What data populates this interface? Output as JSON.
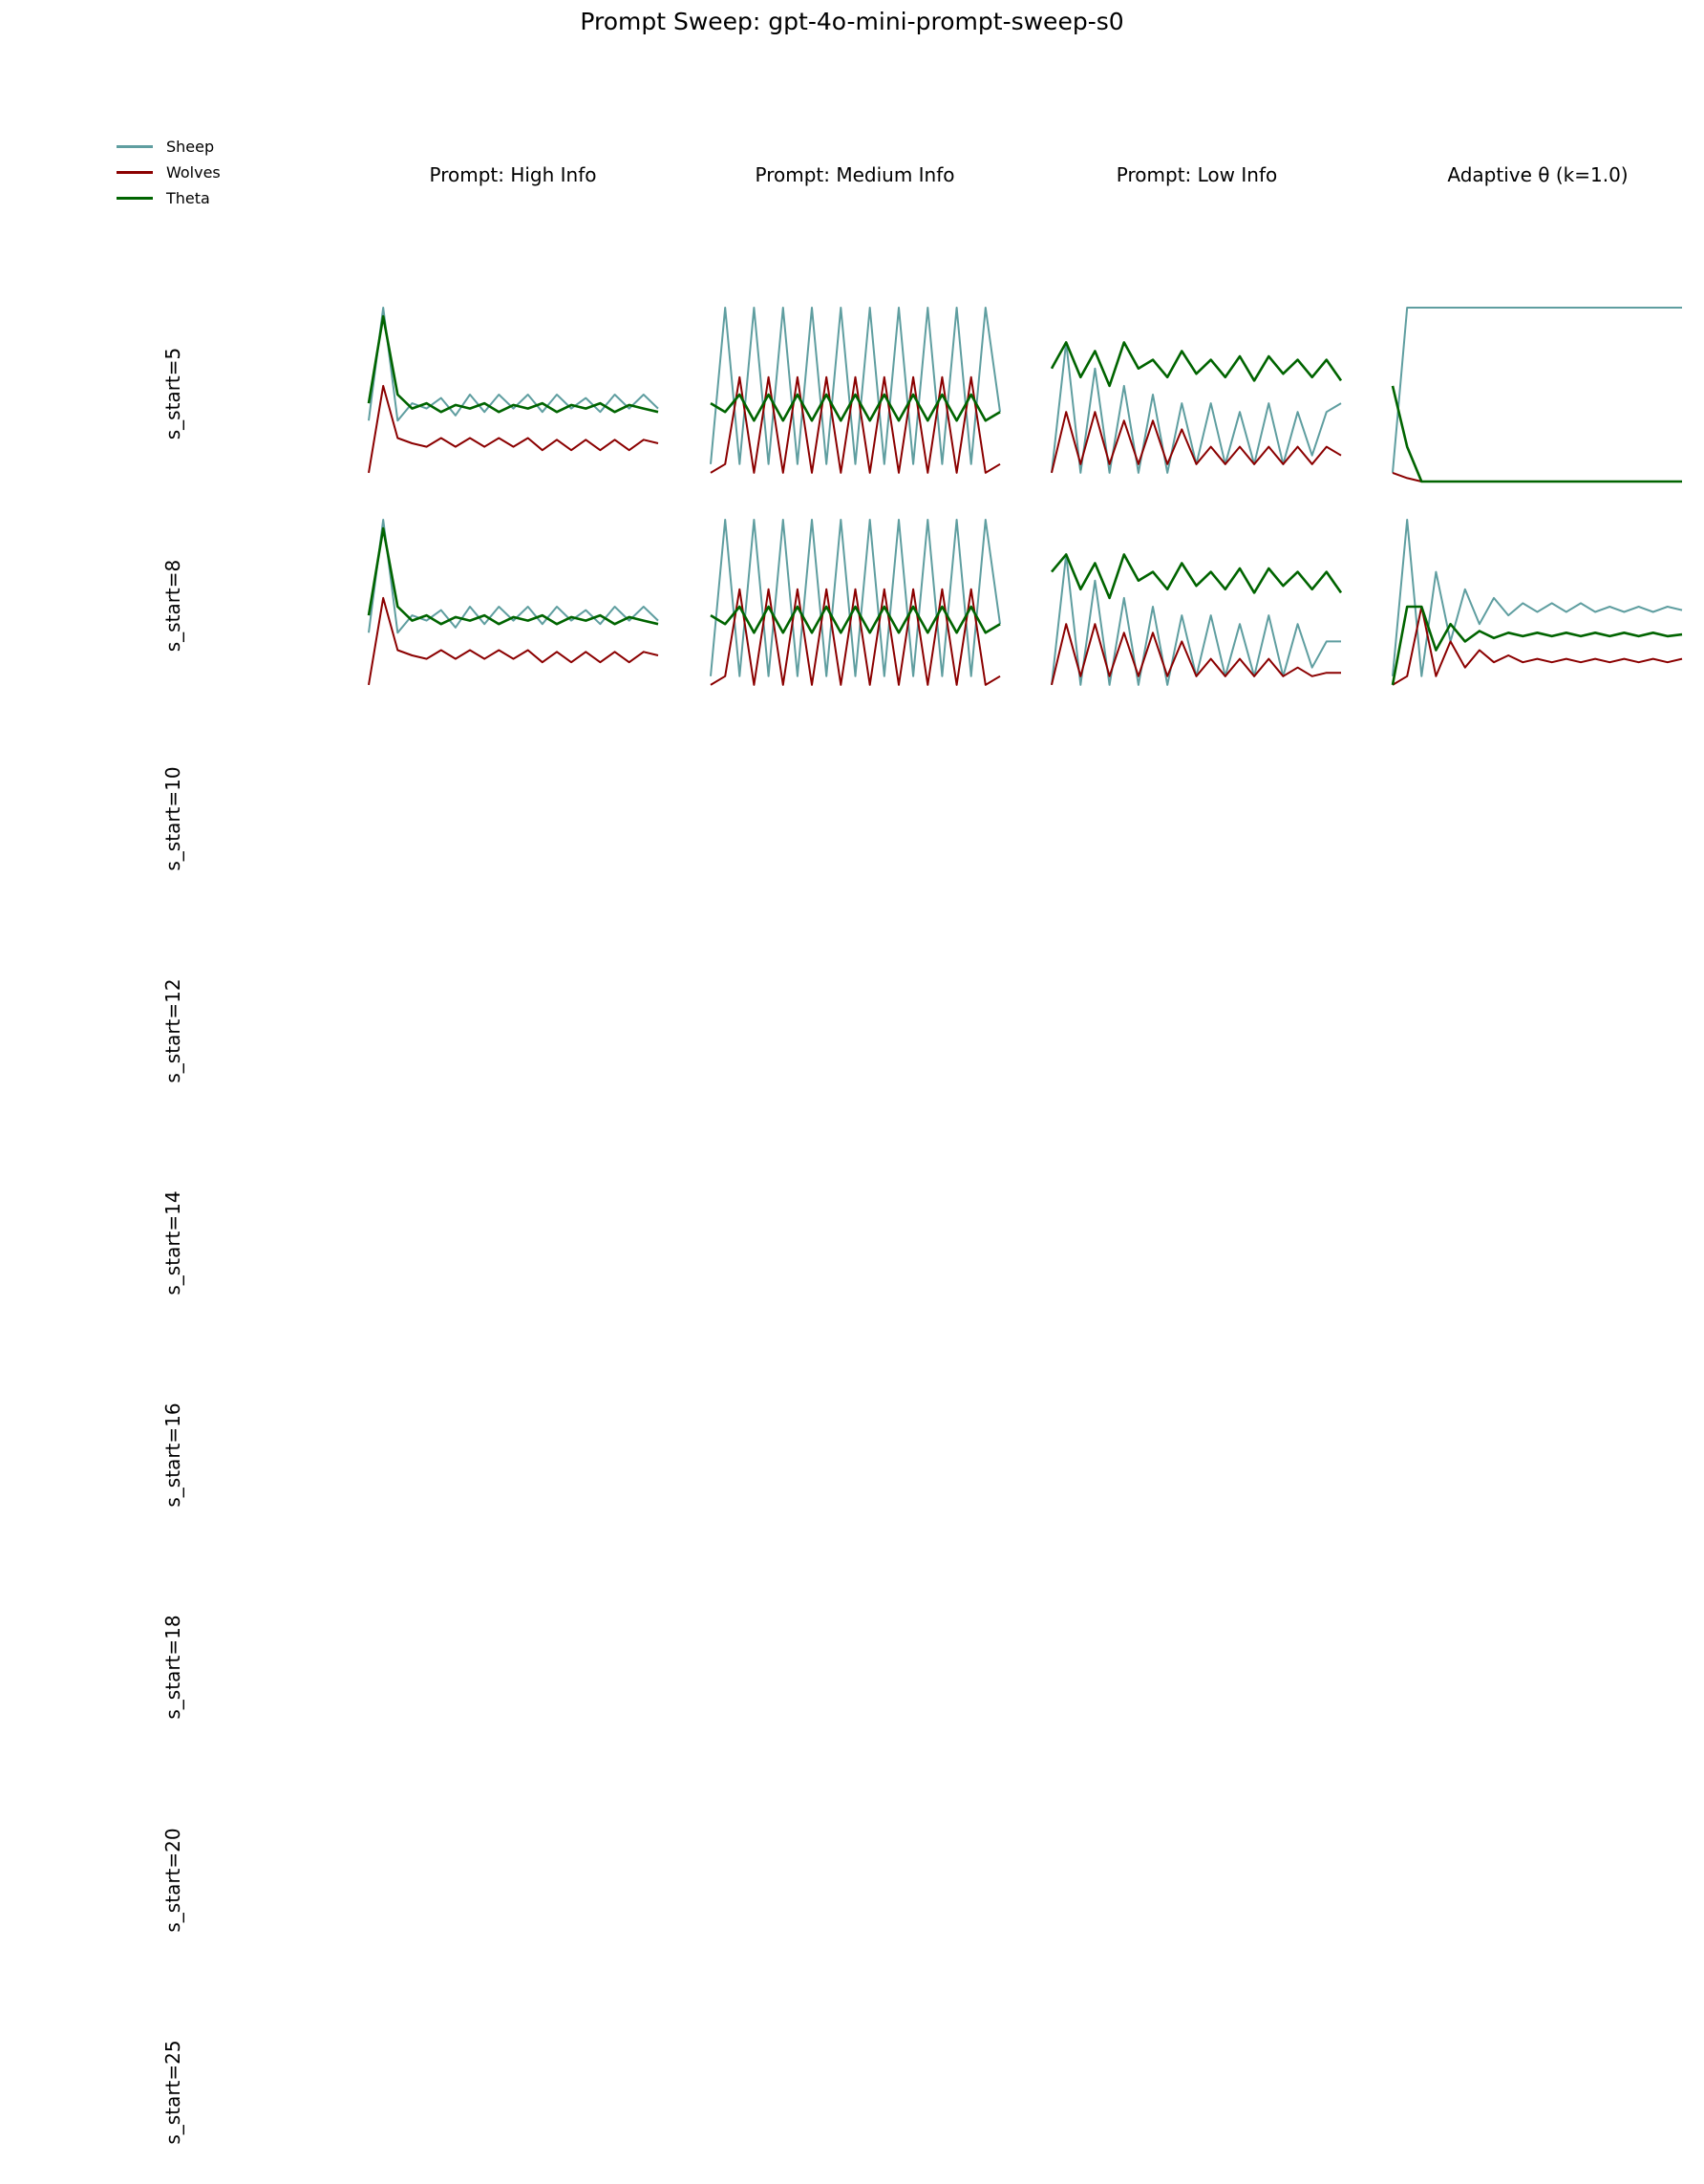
{
  "title": "Prompt Sweep: gpt-4o-mini-prompt-sweep-s0",
  "legend": [
    {
      "name": "Sheep",
      "color": "#5f9ea0"
    },
    {
      "name": "Wolves",
      "color": "#8b0000"
    },
    {
      "name": "Theta",
      "color": "#006400"
    }
  ],
  "columns": [
    "Prompt: High Info",
    "Prompt: Medium Info",
    "Prompt: Low Info",
    "Adaptive θ (k=1.0)"
  ],
  "rows": [
    "s_start=5",
    "s_start=8",
    "s_start=10",
    "s_start=12",
    "s_start=14",
    "s_start=16",
    "s_start=18",
    "s_start=20",
    "s_start=25"
  ],
  "chart_data": {
    "type": "line",
    "layout": "grid of small-multiple line panels (rows × columns), axes hidden",
    "series_names": [
      "Sheep",
      "Wolves",
      "Theta"
    ],
    "x": [
      0,
      1,
      2,
      3,
      4,
      5,
      6,
      7,
      8,
      9,
      10,
      11,
      12,
      13,
      14,
      15,
      16,
      17,
      18,
      19,
      20
    ],
    "ylim": [
      0,
      1
    ],
    "panels": [
      {
        "row": "s_start=5",
        "column": "Prompt: High Info",
        "series": [
          {
            "name": "Sheep",
            "values": [
              0.35,
              1.0,
              0.35,
              0.45,
              0.42,
              0.48,
              0.38,
              0.5,
              0.4,
              0.5,
              0.42,
              0.5,
              0.4,
              0.5,
              0.42,
              0.48,
              0.4,
              0.5,
              0.42,
              0.5,
              0.42
            ]
          },
          {
            "name": "Wolves",
            "values": [
              0.05,
              0.55,
              0.25,
              0.22,
              0.2,
              0.25,
              0.2,
              0.25,
              0.2,
              0.25,
              0.2,
              0.25,
              0.18,
              0.24,
              0.18,
              0.24,
              0.18,
              0.24,
              0.18,
              0.24,
              0.22
            ]
          },
          {
            "name": "Theta",
            "values": [
              0.45,
              0.95,
              0.5,
              0.42,
              0.45,
              0.4,
              0.44,
              0.42,
              0.45,
              0.4,
              0.44,
              0.42,
              0.45,
              0.4,
              0.44,
              0.42,
              0.45,
              0.4,
              0.44,
              0.42,
              0.4
            ]
          }
        ]
      },
      {
        "row": "s_start=5",
        "column": "Prompt: Medium Info",
        "series": [
          {
            "name": "Sheep",
            "values": [
              0.1,
              1.0,
              0.1,
              1.0,
              0.1,
              1.0,
              0.1,
              1.0,
              0.1,
              1.0,
              0.1,
              1.0,
              0.1,
              1.0,
              0.1,
              1.0,
              0.1,
              1.0,
              0.1,
              1.0,
              0.4
            ]
          },
          {
            "name": "Wolves",
            "values": [
              0.05,
              0.1,
              0.6,
              0.05,
              0.6,
              0.05,
              0.6,
              0.05,
              0.6,
              0.05,
              0.6,
              0.05,
              0.6,
              0.05,
              0.6,
              0.05,
              0.6,
              0.05,
              0.6,
              0.05,
              0.1
            ]
          },
          {
            "name": "Theta",
            "values": [
              0.45,
              0.4,
              0.5,
              0.35,
              0.5,
              0.35,
              0.5,
              0.35,
              0.5,
              0.35,
              0.5,
              0.35,
              0.5,
              0.35,
              0.5,
              0.35,
              0.5,
              0.35,
              0.5,
              0.35,
              0.4
            ]
          }
        ]
      },
      {
        "row": "s_start=5",
        "column": "Prompt: Low Info",
        "series": [
          {
            "name": "Sheep",
            "values": [
              0.05,
              0.8,
              0.05,
              0.65,
              0.05,
              0.55,
              0.05,
              0.5,
              0.05,
              0.45,
              0.1,
              0.45,
              0.1,
              0.4,
              0.1,
              0.45,
              0.1,
              0.4,
              0.15,
              0.4,
              0.45
            ]
          },
          {
            "name": "Wolves",
            "values": [
              0.05,
              0.4,
              0.1,
              0.4,
              0.1,
              0.35,
              0.1,
              0.35,
              0.1,
              0.3,
              0.1,
              0.2,
              0.1,
              0.2,
              0.1,
              0.2,
              0.1,
              0.2,
              0.1,
              0.2,
              0.15
            ]
          },
          {
            "name": "Theta",
            "values": [
              0.65,
              0.8,
              0.6,
              0.75,
              0.55,
              0.8,
              0.65,
              0.7,
              0.6,
              0.75,
              0.62,
              0.7,
              0.6,
              0.72,
              0.58,
              0.72,
              0.62,
              0.7,
              0.6,
              0.7,
              0.58
            ]
          }
        ]
      },
      {
        "row": "s_start=5",
        "column": "Adaptive θ (k=1.0)",
        "series": [
          {
            "name": "Sheep",
            "values": [
              0.05,
              1.0,
              1.0,
              1.0,
              1.0,
              1.0,
              1.0,
              1.0,
              1.0,
              1.0,
              1.0,
              1.0,
              1.0,
              1.0,
              1.0,
              1.0,
              1.0,
              1.0,
              1.0,
              1.0,
              1.0
            ]
          },
          {
            "name": "Wolves",
            "values": [
              0.05,
              0.02,
              0.0,
              0.0,
              0.0,
              0.0,
              0.0,
              0.0,
              0.0,
              0.0,
              0.0,
              0.0,
              0.0,
              0.0,
              0.0,
              0.0,
              0.0,
              0.0,
              0.0,
              0.0,
              0.0
            ]
          },
          {
            "name": "Theta",
            "values": [
              0.55,
              0.2,
              0.0,
              0.0,
              0.0,
              0.0,
              0.0,
              0.0,
              0.0,
              0.0,
              0.0,
              0.0,
              0.0,
              0.0,
              0.0,
              0.0,
              0.0,
              0.0,
              0.0,
              0.0,
              0.0
            ]
          }
        ]
      },
      {
        "row": "s_start=8",
        "column": "Prompt: High Info",
        "series": [
          {
            "name": "Sheep",
            "values": [
              0.35,
              1.0,
              0.35,
              0.45,
              0.42,
              0.48,
              0.38,
              0.5,
              0.4,
              0.5,
              0.42,
              0.5,
              0.4,
              0.5,
              0.42,
              0.48,
              0.4,
              0.5,
              0.42,
              0.5,
              0.42
            ]
          },
          {
            "name": "Wolves",
            "values": [
              0.05,
              0.55,
              0.25,
              0.22,
              0.2,
              0.25,
              0.2,
              0.25,
              0.2,
              0.25,
              0.2,
              0.25,
              0.18,
              0.24,
              0.18,
              0.24,
              0.18,
              0.24,
              0.18,
              0.24,
              0.22
            ]
          },
          {
            "name": "Theta",
            "values": [
              0.45,
              0.95,
              0.5,
              0.42,
              0.45,
              0.4,
              0.44,
              0.42,
              0.45,
              0.4,
              0.44,
              0.42,
              0.45,
              0.4,
              0.44,
              0.42,
              0.45,
              0.4,
              0.44,
              0.42,
              0.4
            ]
          }
        ]
      },
      {
        "row": "s_start=8",
        "column": "Prompt: Medium Info",
        "series": [
          {
            "name": "Sheep",
            "values": [
              0.1,
              1.0,
              0.1,
              1.0,
              0.1,
              1.0,
              0.1,
              1.0,
              0.1,
              1.0,
              0.1,
              1.0,
              0.1,
              1.0,
              0.1,
              1.0,
              0.1,
              1.0,
              0.1,
              1.0,
              0.4
            ]
          },
          {
            "name": "Wolves",
            "values": [
              0.05,
              0.1,
              0.6,
              0.05,
              0.6,
              0.05,
              0.6,
              0.05,
              0.6,
              0.05,
              0.6,
              0.05,
              0.6,
              0.05,
              0.6,
              0.05,
              0.6,
              0.05,
              0.6,
              0.05,
              0.1
            ]
          },
          {
            "name": "Theta",
            "values": [
              0.45,
              0.4,
              0.5,
              0.35,
              0.5,
              0.35,
              0.5,
              0.35,
              0.5,
              0.35,
              0.5,
              0.35,
              0.5,
              0.35,
              0.5,
              0.35,
              0.5,
              0.35,
              0.5,
              0.35,
              0.4
            ]
          }
        ]
      },
      {
        "row": "s_start=8",
        "column": "Prompt: Low Info",
        "series": [
          {
            "name": "Sheep",
            "values": [
              0.05,
              0.8,
              0.05,
              0.65,
              0.05,
              0.55,
              0.05,
              0.5,
              0.05,
              0.45,
              0.1,
              0.45,
              0.1,
              0.4,
              0.1,
              0.45,
              0.1,
              0.4,
              0.15,
              0.3,
              0.3
            ]
          },
          {
            "name": "Wolves",
            "values": [
              0.05,
              0.4,
              0.1,
              0.4,
              0.1,
              0.35,
              0.1,
              0.35,
              0.1,
              0.3,
              0.1,
              0.2,
              0.1,
              0.2,
              0.1,
              0.2,
              0.1,
              0.15,
              0.1,
              0.12,
              0.12
            ]
          },
          {
            "name": "Theta",
            "values": [
              0.7,
              0.8,
              0.6,
              0.75,
              0.55,
              0.8,
              0.65,
              0.7,
              0.6,
              0.75,
              0.62,
              0.7,
              0.6,
              0.72,
              0.58,
              0.72,
              0.62,
              0.7,
              0.6,
              0.7,
              0.58
            ]
          }
        ]
      },
      {
        "row": "s_start=8",
        "column": "Adaptive θ (k=1.0)",
        "series": [
          {
            "name": "Sheep",
            "values": [
              0.1,
              1.0,
              0.1,
              0.7,
              0.3,
              0.6,
              0.4,
              0.55,
              0.45,
              0.52,
              0.47,
              0.52,
              0.47,
              0.52,
              0.47,
              0.5,
              0.47,
              0.5,
              0.47,
              0.5,
              0.48
            ]
          },
          {
            "name": "Wolves",
            "values": [
              0.05,
              0.1,
              0.5,
              0.1,
              0.3,
              0.15,
              0.25,
              0.18,
              0.22,
              0.18,
              0.2,
              0.18,
              0.2,
              0.18,
              0.2,
              0.18,
              0.2,
              0.18,
              0.2,
              0.18,
              0.2
            ]
          },
          {
            "name": "Theta",
            "values": [
              0.05,
              0.5,
              0.5,
              0.25,
              0.4,
              0.3,
              0.36,
              0.32,
              0.35,
              0.33,
              0.35,
              0.33,
              0.35,
              0.33,
              0.35,
              0.33,
              0.35,
              0.33,
              0.35,
              0.33,
              0.34
            ]
          }
        ]
      }
    ]
  }
}
